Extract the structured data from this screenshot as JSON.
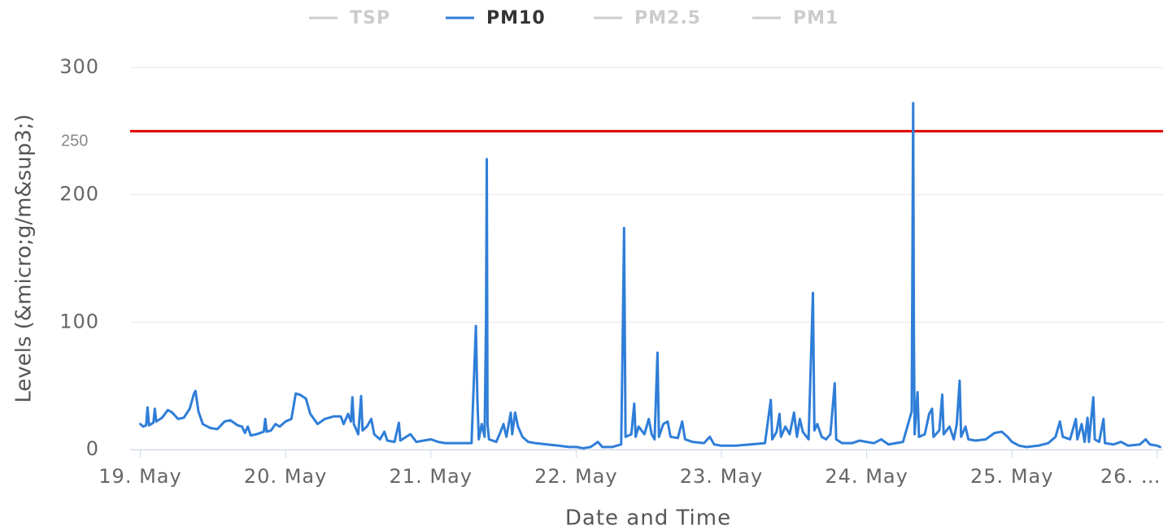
{
  "chart_data": {
    "type": "line",
    "legend": [
      {
        "name": "TSP",
        "color": "#cccccc",
        "active": false
      },
      {
        "name": "PM10",
        "color": "#2f7ed8",
        "active": true
      },
      {
        "name": "PM2.5",
        "color": "#cccccc",
        "active": false
      },
      {
        "name": "PM1",
        "color": "#cccccc",
        "active": false
      }
    ],
    "x_label": "Date and Time",
    "y_label": "Levels (&micro;g/m&sup3;)",
    "xlim": [
      18.93,
      26.04
    ],
    "xticks": [
      {
        "value": 19,
        "label": "19. May"
      },
      {
        "value": 20,
        "label": "20. May"
      },
      {
        "value": 21,
        "label": "21. May"
      },
      {
        "value": 22,
        "label": "22. May"
      },
      {
        "value": 23,
        "label": "23. May"
      },
      {
        "value": 24,
        "label": "24. May"
      },
      {
        "value": 25,
        "label": "25. May"
      },
      {
        "value": 26,
        "label": "26. …"
      }
    ],
    "ylim": [
      0,
      300
    ],
    "yticks": [
      0,
      100,
      200,
      300
    ],
    "grid": true,
    "threshold": {
      "value": 250,
      "label": "250",
      "color": "#e00000"
    },
    "x": [
      19.0,
      19.02,
      19.04,
      19.05,
      19.06,
      19.09,
      19.1,
      19.11,
      19.15,
      19.19,
      19.22,
      19.26,
      19.3,
      19.34,
      19.37,
      19.38,
      19.4,
      19.43,
      19.48,
      19.53,
      19.58,
      19.62,
      19.67,
      19.7,
      19.72,
      19.74,
      19.76,
      19.8,
      19.85,
      19.86,
      19.87,
      19.9,
      19.93,
      19.96,
      20.0,
      20.04,
      20.07,
      20.1,
      20.14,
      20.17,
      20.22,
      20.27,
      20.33,
      20.38,
      20.4,
      20.43,
      20.45,
      20.46,
      20.47,
      20.5,
      20.52,
      20.53,
      20.56,
      20.59,
      20.61,
      20.65,
      20.68,
      20.7,
      20.75,
      20.78,
      20.79,
      20.83,
      20.86,
      20.9,
      20.95,
      21.0,
      21.05,
      21.1,
      21.2,
      21.28,
      21.31,
      21.32,
      21.33,
      21.35,
      21.37,
      21.38,
      21.385,
      21.39,
      21.4,
      21.45,
      21.48,
      21.5,
      21.52,
      21.55,
      21.56,
      21.58,
      21.6,
      21.63,
      21.67,
      21.72,
      21.8,
      21.88,
      21.95,
      22.0,
      22.05,
      22.1,
      22.15,
      22.18,
      22.25,
      22.31,
      22.32,
      22.33,
      22.34,
      22.38,
      22.4,
      22.41,
      22.43,
      22.47,
      22.5,
      22.52,
      22.54,
      22.56,
      22.57,
      22.6,
      22.63,
      22.65,
      22.7,
      22.73,
      22.75,
      22.8,
      22.88,
      22.92,
      22.95,
      23.0,
      23.1,
      23.2,
      23.3,
      23.34,
      23.35,
      23.38,
      23.4,
      23.41,
      23.44,
      23.47,
      23.5,
      23.52,
      23.54,
      23.56,
      23.6,
      23.63,
      23.64,
      23.66,
      23.69,
      23.72,
      23.75,
      23.78,
      23.79,
      23.83,
      23.9,
      23.95,
      24.0,
      24.05,
      24.1,
      24.15,
      24.25,
      24.31,
      24.32,
      24.325,
      24.33,
      24.35,
      24.36,
      24.4,
      24.43,
      24.45,
      24.46,
      24.5,
      24.52,
      24.53,
      24.57,
      24.6,
      24.62,
      24.64,
      24.65,
      24.68,
      24.7,
      24.75,
      24.82,
      24.88,
      24.93,
      24.97,
      25.0,
      25.05,
      25.1,
      25.18,
      25.25,
      25.3,
      25.33,
      25.35,
      25.4,
      25.44,
      25.45,
      25.48,
      25.5,
      25.52,
      25.53,
      25.56,
      25.57,
      25.6,
      25.63,
      25.64,
      25.7,
      25.75,
      25.8,
      25.88,
      25.92,
      25.95,
      26.0,
      26.02
    ],
    "series": [
      {
        "name": "PM10",
        "color": "#2f7ed8",
        "values": [
          20,
          18,
          19,
          33,
          19,
          21,
          32,
          22,
          25,
          31,
          29,
          24,
          25,
          32,
          44,
          46,
          30,
          20,
          17,
          16,
          22,
          23,
          19,
          18,
          13,
          18,
          11,
          12,
          14,
          24,
          14,
          15,
          20,
          18,
          22,
          24,
          44,
          43,
          40,
          28,
          20,
          24,
          26,
          26,
          20,
          28,
          22,
          41,
          20,
          12,
          42,
          15,
          18,
          24,
          12,
          8,
          14,
          7,
          6,
          21,
          7,
          10,
          12,
          6,
          7,
          8,
          6,
          5,
          5,
          5,
          97,
          40,
          8,
          20,
          10,
          104,
          228,
          20,
          8,
          6,
          14,
          20,
          10,
          29,
          12,
          29,
          18,
          10,
          6,
          5,
          4,
          3,
          2,
          2,
          1,
          2,
          6,
          2,
          2,
          4,
          82,
          174,
          10,
          12,
          36,
          10,
          18,
          12,
          24,
          12,
          8,
          76,
          10,
          20,
          22,
          10,
          9,
          22,
          8,
          6,
          5,
          10,
          4,
          3,
          3,
          4,
          5,
          39,
          8,
          14,
          28,
          10,
          18,
          12,
          29,
          10,
          24,
          14,
          8,
          123,
          15,
          20,
          10,
          8,
          12,
          52,
          8,
          5,
          5,
          7,
          6,
          5,
          8,
          4,
          6,
          30,
          272,
          90,
          12,
          45,
          10,
          12,
          28,
          32,
          10,
          15,
          43,
          12,
          18,
          8,
          20,
          54,
          10,
          18,
          8,
          7,
          8,
          13,
          14,
          10,
          6,
          3,
          2,
          3,
          5,
          10,
          22,
          10,
          8,
          24,
          8,
          20,
          6,
          25,
          6,
          41,
          8,
          6,
          24,
          5,
          4,
          6,
          3,
          4,
          8,
          4,
          3,
          2
        ]
      }
    ]
  }
}
